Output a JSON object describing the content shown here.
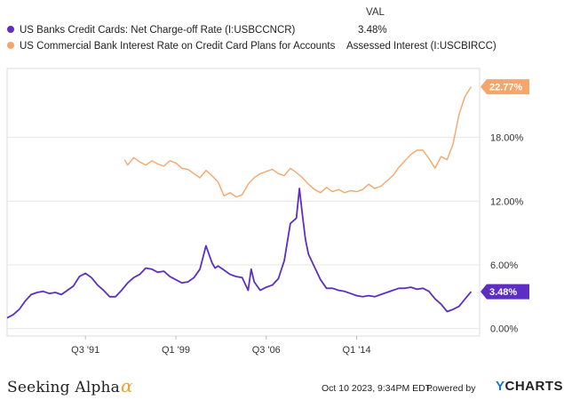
{
  "legend": {
    "header": "VAL",
    "items": [
      {
        "name": "US Banks Credit Cards: Net Charge-off Rate (I:USBCCNCR)",
        "value": "3.48%",
        "color": "#5c2fc2"
      },
      {
        "name": "US Commercial Bank Interest Rate on Credit Card Plans for Accounts",
        "name2": "Assessed Interest (I:USCBIRCC)",
        "color": "#f6a66a"
      }
    ]
  },
  "footer": {
    "logo_text": "Seeking Alpha",
    "logo_symbol": "α",
    "timestamp": "Oct 10 2023, 9:34PM EDT.",
    "powered_by": "Powered by",
    "ycharts_y": "Y",
    "ycharts_rest": "CHARTS"
  },
  "chart_data": {
    "type": "line",
    "x_ticks": [
      {
        "year": 1991.5,
        "label": "Q3 '91"
      },
      {
        "year": 1999.0,
        "label": "Q1 '99"
      },
      {
        "year": 2006.5,
        "label": "Q3 '06"
      },
      {
        "year": 2014.0,
        "label": "Q1 '14"
      }
    ],
    "y_ticks": [
      {
        "value": 0,
        "label": "0.00%"
      },
      {
        "value": 6,
        "label": "6.00%"
      },
      {
        "value": 12,
        "label": "12.00%"
      },
      {
        "value": 18,
        "label": "18.00%"
      }
    ],
    "xlim": [
      1985.0,
      2024.2
    ],
    "ylim": [
      -0.7,
      24.5
    ],
    "grid": "horizontal",
    "end_labels": [
      {
        "series": 0,
        "label": "3.48%"
      },
      {
        "series": 1,
        "label": "22.77%"
      }
    ],
    "series": [
      {
        "name": "US Banks Credit Cards: Net Charge-off Rate (I:USBCCNCR)",
        "color": "#5c2fc2",
        "x": [
          1985.0,
          1985.5,
          1986.0,
          1986.5,
          1987.0,
          1987.5,
          1988.0,
          1988.5,
          1989.0,
          1989.5,
          1990.0,
          1990.5,
          1991.0,
          1991.5,
          1992.0,
          1992.5,
          1993.0,
          1993.5,
          1994.0,
          1994.5,
          1995.0,
          1995.5,
          1996.0,
          1996.5,
          1997.0,
          1997.5,
          1998.0,
          1998.5,
          1999.0,
          1999.5,
          2000.0,
          2000.5,
          2001.0,
          2001.5,
          2002.0,
          2002.25,
          2002.5,
          2003.0,
          2003.5,
          2004.0,
          2004.5,
          2005.0,
          2005.25,
          2005.5,
          2006.0,
          2006.5,
          2007.0,
          2007.5,
          2008.0,
          2008.5,
          2009.0,
          2009.25,
          2009.5,
          2009.75,
          2010.0,
          2010.5,
          2011.0,
          2011.5,
          2012.0,
          2012.5,
          2013.0,
          2013.5,
          2014.0,
          2014.5,
          2015.0,
          2015.5,
          2016.0,
          2016.5,
          2017.0,
          2017.5,
          2018.0,
          2018.5,
          2019.0,
          2019.5,
          2020.0,
          2020.5,
          2021.0,
          2021.5,
          2022.0,
          2022.5,
          2023.0,
          2023.5
        ],
        "values": [
          1.0,
          1.3,
          1.8,
          2.6,
          3.2,
          3.4,
          3.5,
          3.3,
          3.4,
          3.2,
          3.6,
          4.0,
          4.9,
          5.2,
          4.8,
          4.1,
          3.6,
          3.0,
          3.0,
          3.6,
          4.3,
          4.8,
          5.1,
          5.7,
          5.6,
          5.3,
          5.4,
          4.9,
          4.6,
          4.3,
          4.4,
          4.8,
          5.6,
          7.8,
          6.2,
          5.7,
          5.9,
          5.5,
          5.1,
          4.9,
          4.8,
          3.6,
          5.6,
          4.4,
          3.6,
          3.9,
          4.1,
          4.7,
          6.4,
          9.9,
          10.4,
          13.2,
          10.7,
          8.4,
          7.0,
          5.8,
          4.6,
          3.8,
          3.8,
          3.6,
          3.5,
          3.3,
          3.1,
          3.0,
          3.1,
          3.0,
          3.2,
          3.4,
          3.6,
          3.8,
          3.8,
          3.9,
          3.7,
          3.8,
          3.5,
          2.8,
          2.3,
          1.6,
          1.8,
          2.1,
          2.8,
          3.48
        ]
      },
      {
        "name": "US Commercial Bank Interest Rate on Credit Card Plans for Accounts Assessed Interest (I:USCBIRCC)",
        "color": "#f6a66a",
        "x": [
          1994.75,
          1995.0,
          1995.5,
          1996.0,
          1996.5,
          1997.0,
          1997.5,
          1998.0,
          1998.5,
          1999.0,
          1999.5,
          2000.0,
          2000.5,
          2001.0,
          2001.5,
          2002.0,
          2002.5,
          2003.0,
          2003.5,
          2004.0,
          2004.5,
          2005.0,
          2005.5,
          2006.0,
          2006.5,
          2007.0,
          2007.5,
          2008.0,
          2008.5,
          2009.0,
          2009.5,
          2010.0,
          2010.5,
          2011.0,
          2011.5,
          2012.0,
          2012.5,
          2013.0,
          2013.5,
          2014.0,
          2014.5,
          2015.0,
          2015.5,
          2016.0,
          2016.5,
          2017.0,
          2017.5,
          2018.0,
          2018.5,
          2019.0,
          2019.5,
          2020.0,
          2020.5,
          2021.0,
          2021.5,
          2022.0,
          2022.5,
          2023.0,
          2023.5
        ],
        "values": [
          15.9,
          15.4,
          16.1,
          15.7,
          15.4,
          15.8,
          15.5,
          15.3,
          15.8,
          15.6,
          15.1,
          15.0,
          14.6,
          14.2,
          14.9,
          14.4,
          13.8,
          12.5,
          12.8,
          12.4,
          12.6,
          13.6,
          14.2,
          14.6,
          14.8,
          15.0,
          14.6,
          14.4,
          15.1,
          14.7,
          14.2,
          13.6,
          13.1,
          12.8,
          13.3,
          12.9,
          13.1,
          12.8,
          13.0,
          12.9,
          13.1,
          13.6,
          13.2,
          13.4,
          13.9,
          14.4,
          15.2,
          15.8,
          16.4,
          16.8,
          16.8,
          16.0,
          15.1,
          16.2,
          15.9,
          17.4,
          20.2,
          21.9,
          22.77
        ]
      }
    ]
  }
}
